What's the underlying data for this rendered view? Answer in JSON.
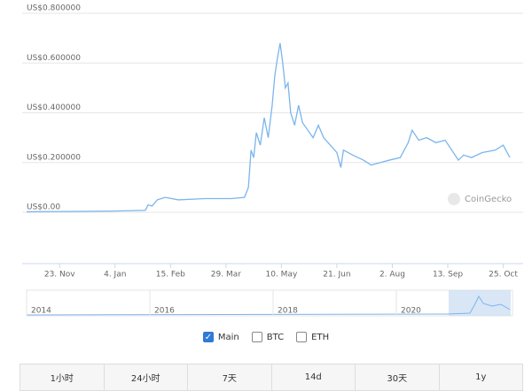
{
  "chart_data": {
    "type": "line",
    "series": [
      {
        "color": "#7cb5ec",
        "x": [
          -25,
          0,
          40,
          65,
          67,
          70,
          74,
          80,
          90,
          110,
          130,
          140,
          143,
          145,
          147,
          149,
          152,
          155,
          158,
          161,
          163,
          165,
          167,
          169,
          171,
          173,
          175,
          178,
          181,
          184,
          188,
          192,
          196,
          200,
          205,
          210,
          213,
          215,
          222,
          230,
          236,
          243,
          250,
          258,
          264,
          267,
          272,
          278,
          285,
          292,
          297,
          302,
          306,
          312,
          320,
          330,
          336,
          338,
          341
        ],
        "values": [
          0.002,
          0.003,
          0.005,
          0.008,
          0.03,
          0.025,
          0.05,
          0.06,
          0.05,
          0.055,
          0.055,
          0.06,
          0.1,
          0.25,
          0.22,
          0.32,
          0.27,
          0.38,
          0.3,
          0.43,
          0.55,
          0.62,
          0.68,
          0.6,
          0.5,
          0.52,
          0.4,
          0.35,
          0.43,
          0.36,
          0.33,
          0.3,
          0.35,
          0.3,
          0.27,
          0.24,
          0.18,
          0.25,
          0.23,
          0.21,
          0.19,
          0.2,
          0.21,
          0.22,
          0.28,
          0.33,
          0.29,
          0.3,
          0.28,
          0.29,
          0.25,
          0.21,
          0.23,
          0.22,
          0.24,
          0.25,
          0.27,
          0.25,
          0.22
        ]
      }
    ],
    "xlim": [
      -25,
      341
    ],
    "xticks": [
      {
        "value": 0,
        "label": "23. Nov"
      },
      {
        "value": 42,
        "label": "4. Jan"
      },
      {
        "value": 84,
        "label": "15. Feb"
      },
      {
        "value": 126,
        "label": "29. Mar"
      },
      {
        "value": 168,
        "label": "10. May"
      },
      {
        "value": 210,
        "label": "21. Jun"
      },
      {
        "value": 252,
        "label": "2. Aug"
      },
      {
        "value": 294,
        "label": "13. Sep"
      },
      {
        "value": 336,
        "label": "25. Oct"
      }
    ],
    "ylim": [
      0,
      0.8
    ],
    "yticks": [
      {
        "value": 0,
        "label": "US$0.00"
      },
      {
        "value": 0.2,
        "label": "US$0.200000"
      },
      {
        "value": 0.4,
        "label": "US$0.400000"
      },
      {
        "value": 0.6,
        "label": "US$0.600000"
      },
      {
        "value": 0.8,
        "label": "US$0.800000"
      }
    ],
    "grid": true,
    "watermark": "CoinGecko",
    "navigator_labels": [
      "2014",
      "2016",
      "2018",
      "2020"
    ]
  },
  "toggles": [
    {
      "label": "Main",
      "checked": true
    },
    {
      "label": "BTC",
      "checked": false
    },
    {
      "label": "ETH",
      "checked": false
    }
  ],
  "ranges": [
    "1小时",
    "24小时",
    "7天",
    "14d",
    "30天",
    "1y"
  ]
}
